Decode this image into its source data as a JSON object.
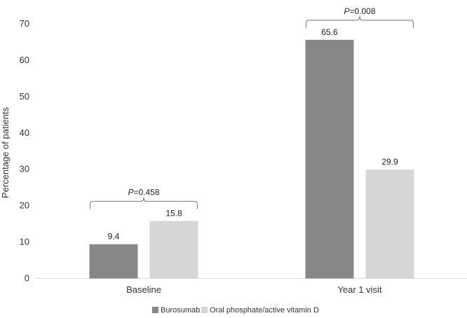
{
  "chart_data": {
    "type": "bar",
    "title": "",
    "xlabel": "",
    "ylabel": "Percentage of patients",
    "ylim": [
      0,
      70
    ],
    "yticks": [
      0,
      10,
      20,
      30,
      40,
      50,
      60,
      70
    ],
    "grid": false,
    "legend_position": "bottom",
    "categories": [
      "Baseline",
      "Year 1 visit"
    ],
    "series": [
      {
        "name": "Burosumab",
        "color": "#87878a",
        "values": [
          9.4,
          65.6
        ],
        "labels": [
          "9.4",
          "65.6"
        ]
      },
      {
        "name": "Oral phosphate/active vitamin D",
        "color": "#d5d6d8",
        "values": [
          15.8,
          29.9
        ],
        "labels": [
          "15.8",
          "29.9"
        ]
      }
    ],
    "annotations": [
      {
        "category": "Baseline",
        "p_symbol": "P",
        "p_text": "=0.458"
      },
      {
        "category": "Year 1 visit",
        "p_symbol": "P",
        "p_text": "=0.008"
      }
    ]
  }
}
